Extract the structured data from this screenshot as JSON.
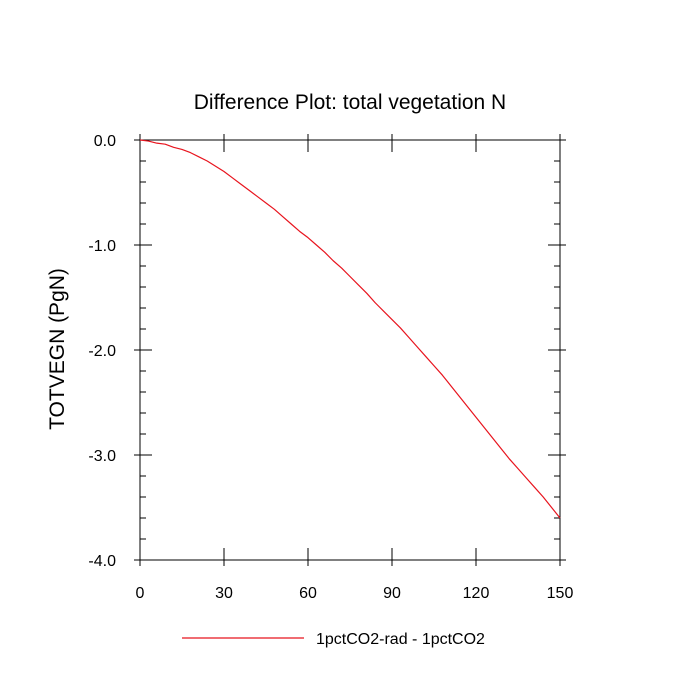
{
  "chart_data": {
    "type": "line",
    "title": "Difference Plot: total vegetation N",
    "xlabel": "",
    "ylabel": "TOTVEGN  (PgN)",
    "xlim": [
      0,
      150
    ],
    "ylim": [
      -4.0,
      0.0
    ],
    "xticks": [
      0,
      30,
      60,
      90,
      120,
      150
    ],
    "xtick_labels": [
      "0",
      "30",
      "60",
      "90",
      "120",
      "150"
    ],
    "yticks": [
      0.0,
      -1.0,
      -2.0,
      -3.0,
      -4.0
    ],
    "ytick_labels": [
      "0.0",
      "-1.0",
      "-2.0",
      "-3.0",
      "-4.0"
    ],
    "grid": false,
    "legend_position": "bottom-center",
    "series": [
      {
        "name": "1pctCO2-rad - 1pctCO2",
        "color": "#e8141e",
        "x": [
          0,
          3,
          6,
          9,
          12,
          15,
          18,
          21,
          24,
          27,
          30,
          33,
          36,
          39,
          42,
          45,
          48,
          51,
          54,
          57,
          60,
          63,
          66,
          69,
          72,
          75,
          78,
          81,
          84,
          87,
          90,
          93,
          96,
          99,
          102,
          105,
          108,
          111,
          114,
          117,
          120,
          123,
          126,
          129,
          132,
          135,
          138,
          141,
          144,
          147,
          150
        ],
        "values": [
          0.0,
          -0.01,
          -0.03,
          -0.04,
          -0.07,
          -0.09,
          -0.12,
          -0.16,
          -0.2,
          -0.25,
          -0.3,
          -0.36,
          -0.42,
          -0.48,
          -0.54,
          -0.6,
          -0.66,
          -0.73,
          -0.8,
          -0.87,
          -0.93,
          -1.0,
          -1.07,
          -1.15,
          -1.22,
          -1.3,
          -1.38,
          -1.46,
          -1.55,
          -1.63,
          -1.71,
          -1.79,
          -1.88,
          -1.97,
          -2.06,
          -2.15,
          -2.24,
          -2.34,
          -2.44,
          -2.54,
          -2.64,
          -2.74,
          -2.84,
          -2.94,
          -3.04,
          -3.13,
          -3.22,
          -3.31,
          -3.4,
          -3.5,
          -3.6
        ]
      }
    ]
  }
}
